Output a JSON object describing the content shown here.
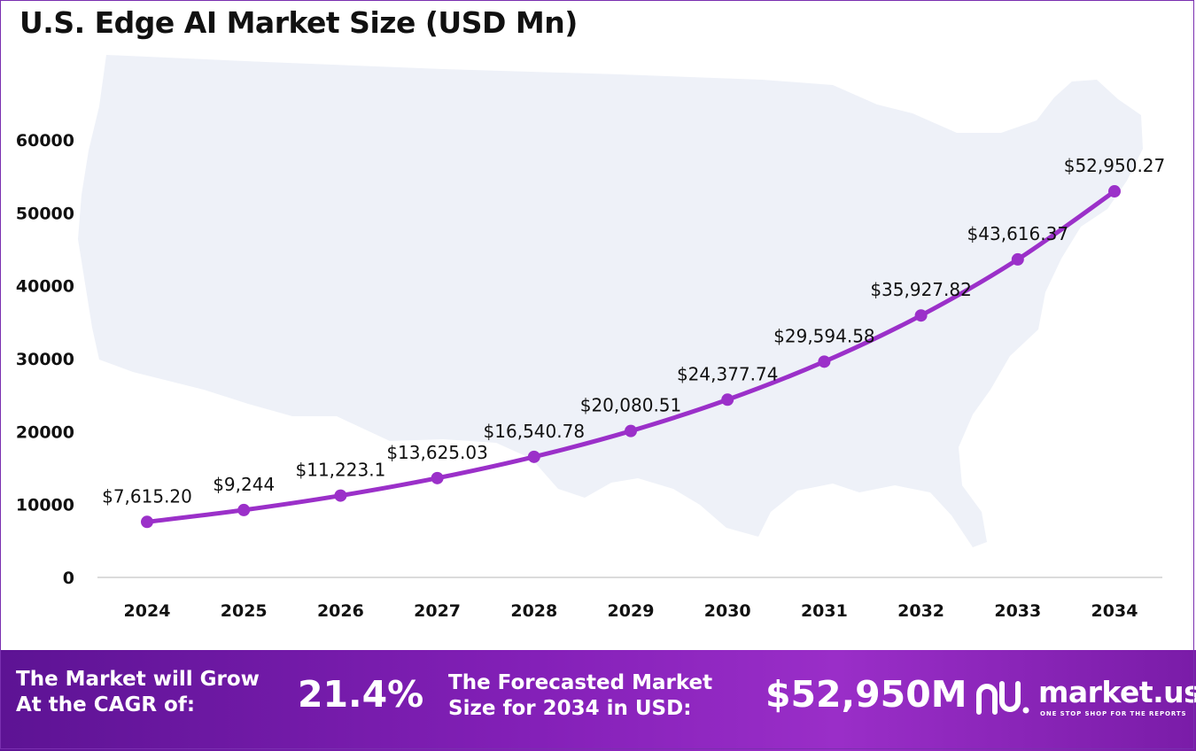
{
  "title": "U.S. Edge AI Market Size (USD Mn)",
  "chart_data": {
    "type": "line",
    "title": "U.S. Edge AI Market Size (USD Mn)",
    "x": [
      "2024",
      "2025",
      "2026",
      "2027",
      "2028",
      "2029",
      "2030",
      "2031",
      "2032",
      "2033",
      "2034"
    ],
    "values": [
      7615.2,
      9244,
      11223.1,
      13625.03,
      16540.78,
      20080.51,
      24377.74,
      29594.58,
      35927.82,
      43616.37,
      52950.27
    ],
    "data_labels": [
      "$7,615.20",
      "$9,244",
      "$11,223.1",
      "$13,625.03",
      "$16,540.78",
      "$20,080.51",
      "$24,377.74",
      "$29,594.58",
      "$35,927.82",
      "$43,616.37",
      "$52,950.27"
    ],
    "yticks": [
      "0",
      "10000",
      "20000",
      "30000",
      "40000",
      "50000",
      "60000"
    ],
    "ylim": [
      0,
      60000
    ],
    "line_color": "#9b30c9",
    "grid": false,
    "background": "faint United States map silhouette"
  },
  "footer": {
    "cagr_label_line1": "The Market will Grow",
    "cagr_label_line2": "At the CAGR of:",
    "cagr_value": "21.4%",
    "forecast_label_line1": "The Forecasted Market",
    "forecast_label_line2": "Size for 2034 in USD:",
    "forecast_value": "$52,950M",
    "brand_name": "market.us",
    "brand_tagline": "ONE STOP SHOP FOR THE REPORTS",
    "gradient_colors": [
      "#5d1394",
      "#9a2ec8"
    ]
  }
}
